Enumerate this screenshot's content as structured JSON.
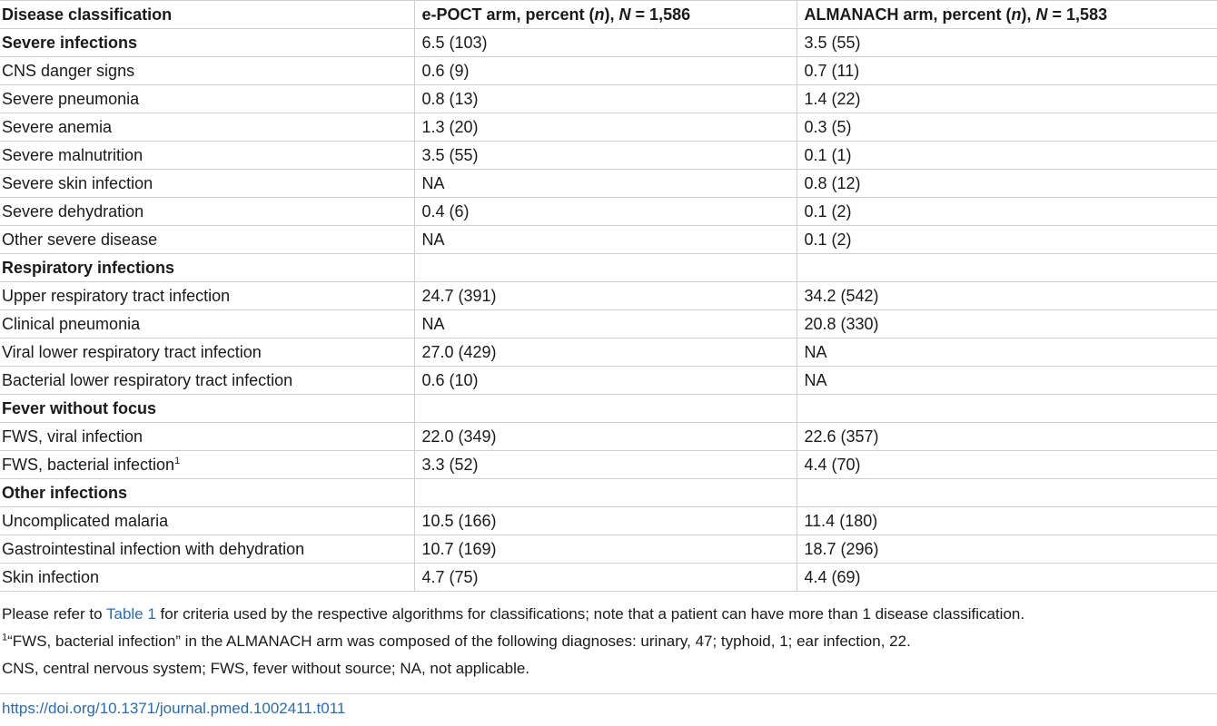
{
  "table": {
    "header": {
      "col1": "Disease classification",
      "col2_prefix": "e-POCT arm, percent (",
      "col2_n": "n",
      "col2_mid": "), ",
      "col2_N": "N",
      "col2_suffix": " = 1,586",
      "col3_prefix": "ALMANACH arm, percent (",
      "col3_n": "n",
      "col3_mid": "), ",
      "col3_N": "N",
      "col3_suffix": " = 1,583"
    },
    "rows": [
      {
        "label": "Severe infections",
        "epoct": "6.5 (103)",
        "almanach": "3.5 (55)"
      },
      {
        "label": "CNS danger signs",
        "epoct": "0.6 (9)",
        "almanach": "0.7 (11)"
      },
      {
        "label": "Severe pneumonia",
        "epoct": "0.8 (13)",
        "almanach": "1.4 (22)"
      },
      {
        "label": "Severe anemia",
        "epoct": "1.3 (20)",
        "almanach": "0.3 (5)"
      },
      {
        "label": "Severe malnutrition",
        "epoct": "3.5 (55)",
        "almanach": "0.1 (1)"
      },
      {
        "label": "Severe skin infection",
        "epoct": "NA",
        "almanach": "0.8 (12)"
      },
      {
        "label": "Severe dehydration",
        "epoct": "0.4 (6)",
        "almanach": "0.1 (2)"
      },
      {
        "label": "Other severe disease",
        "epoct": "NA",
        "almanach": "0.1 (2)"
      },
      {
        "label": "Respiratory infections",
        "epoct": "",
        "almanach": ""
      },
      {
        "label": "Upper respiratory tract infection",
        "epoct": "24.7 (391)",
        "almanach": "34.2 (542)"
      },
      {
        "label": "Clinical pneumonia",
        "epoct": "NA",
        "almanach": "20.8 (330)"
      },
      {
        "label": "Viral lower respiratory tract infection",
        "epoct": "27.0 (429)",
        "almanach": "NA"
      },
      {
        "label": "Bacterial lower respiratory tract infection",
        "epoct": "0.6 (10)",
        "almanach": "NA"
      },
      {
        "label": "Fever without focus",
        "epoct": "",
        "almanach": ""
      },
      {
        "label": "FWS, viral infection",
        "epoct": "22.0 (349)",
        "almanach": "22.6 (357)"
      },
      {
        "label": "FWS, bacterial infection",
        "sup": "1",
        "epoct": "3.3 (52)",
        "almanach": "4.4 (70)"
      },
      {
        "label": "Other infections",
        "epoct": "",
        "almanach": ""
      },
      {
        "label": "Uncomplicated malaria",
        "epoct": "10.5 (166)",
        "almanach": "11.4 (180)"
      },
      {
        "label": "Gastrointestinal infection with dehydration",
        "epoct": "10.7 (169)",
        "almanach": "18.7 (296)"
      },
      {
        "label": "Skin infection",
        "epoct": "4.7 (75)",
        "almanach": "4.4 (69)"
      }
    ]
  },
  "notes": {
    "line1_before": "Please refer to ",
    "line1_link": "Table 1",
    "line1_after": " for criteria used by the respective algorithms for classifications; note that a patient can have more than 1 disease classification.",
    "line2_sup": "1",
    "line2": "“FWS, bacterial infection” in the ALMANACH arm was composed of the following diagnoses: urinary, 47; typhoid, 1; ear infection, 22.",
    "line3": "CNS, central nervous system; FWS, fever without source; NA, not applicable."
  },
  "doi": "https://doi.org/10.1371/journal.pmed.1002411.t011"
}
